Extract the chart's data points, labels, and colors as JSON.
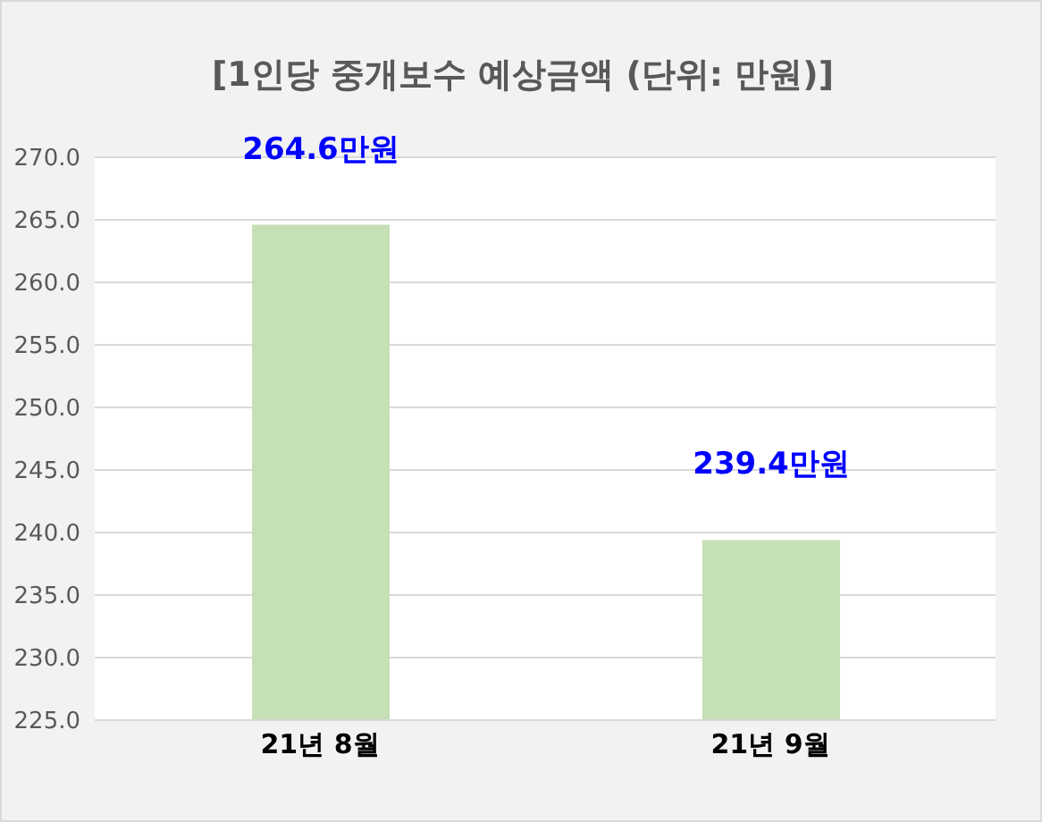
{
  "chart_data": {
    "type": "bar",
    "title": "[1인당 중개보수 예상금액 (단위: 만원)]",
    "categories": [
      "21년 8월",
      "21년 9월"
    ],
    "values": [
      264.6,
      239.4
    ],
    "value_labels": [
      "264.6만원",
      "239.4만원"
    ],
    "color": "#c5e0b4",
    "ylim": [
      225,
      270
    ],
    "yticks": [
      {
        "value": 225,
        "label": "225.0"
      },
      {
        "value": 230,
        "label": "230.0"
      },
      {
        "value": 235,
        "label": "235.0"
      },
      {
        "value": 240,
        "label": "240.0"
      },
      {
        "value": 245,
        "label": "245.0"
      },
      {
        "value": 250,
        "label": "250.0"
      },
      {
        "value": 255,
        "label": "255.0"
      },
      {
        "value": 260,
        "label": "260.0"
      },
      {
        "value": 265,
        "label": "265.0"
      },
      {
        "value": 270,
        "label": "270.0"
      }
    ],
    "grid": "y",
    "legend": false
  }
}
